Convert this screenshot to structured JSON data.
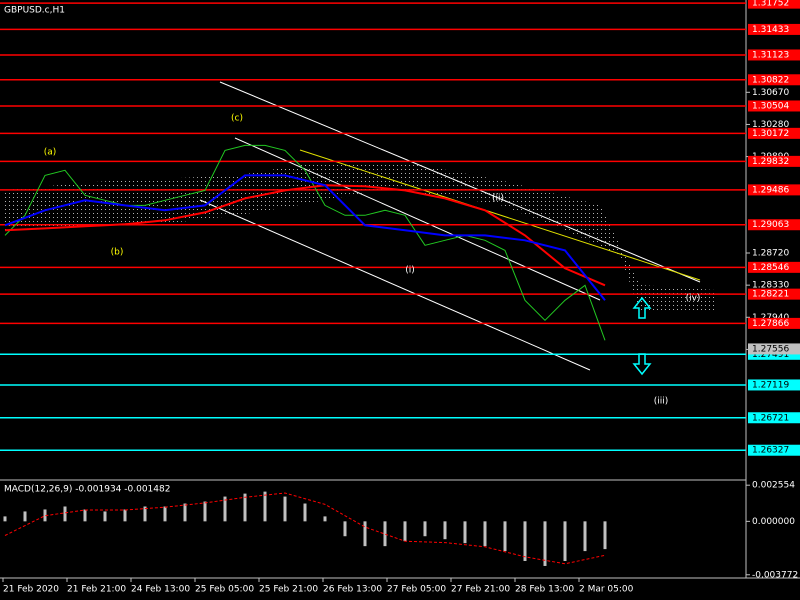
{
  "chart_data": [
    {
      "type": "line",
      "title": "GBPUSD.c,H1",
      "x_labels": [
        "21 Feb 2020",
        "21 Feb 21:00",
        "24 Feb 13:00",
        "25 Feb 05:00",
        "25 Feb 21:00",
        "26 Feb 13:00",
        "27 Feb 05:00",
        "27 Feb 21:00",
        "28 Feb 13:00",
        "2 Mar 05:00"
      ],
      "ylim": [
        1.2599,
        1.3179
      ],
      "yticks": [
        {
          "value": 1.3067,
          "label": "1.30670"
        },
        {
          "value": 1.3028,
          "label": "1.30280"
        },
        {
          "value": 1.2989,
          "label": "1.29890"
        },
        {
          "value": 1.2872,
          "label": "1.28720"
        },
        {
          "value": 1.2833,
          "label": "1.28330"
        },
        {
          "value": 1.2794,
          "label": "1.27940"
        },
        {
          "value": 1.2755,
          "label": "1.27550"
        }
      ],
      "series": [
        {
          "color": "#22c822",
          "values": [
            1.28934,
            1.29177,
            1.29662,
            1.29723,
            1.2942,
            1.29359,
            1.29298,
            1.29298,
            1.29359,
            1.2942,
            1.2948,
            1.29965,
            1.30026,
            1.30026,
            1.29965,
            1.29723,
            1.29298,
            1.29177,
            1.29177,
            1.29238,
            1.29177,
            1.28813,
            1.28874,
            1.28934,
            1.28874,
            1.28752,
            1.28146,
            1.27904,
            1.28146,
            1.28328,
            1.27661
          ]
        },
        {
          "color": "#ff0000",
          "values": [
            1.28995,
            1.29019,
            1.29044,
            1.29068,
            1.29117,
            1.29213,
            1.29383,
            1.2948,
            1.29541,
            1.29529,
            1.2948,
            1.29383,
            1.29238,
            1.28934,
            1.28534,
            1.28328
          ]
        },
        {
          "color": "#0000ff",
          "values": [
            1.29056,
            1.29238,
            1.29359,
            1.29298,
            1.29238,
            1.29298,
            1.29662,
            1.29662,
            1.29541,
            1.29056,
            1.28995,
            1.28934,
            1.28934,
            1.28874,
            1.28752,
            1.28146
          ]
        }
      ],
      "levels": [
        {
          "value": 1.31752,
          "color": "#ff0000"
        },
        {
          "value": 1.31433,
          "color": "#ff0000"
        },
        {
          "value": 1.31123,
          "color": "#ff0000"
        },
        {
          "value": 1.30822,
          "color": "#ff0000"
        },
        {
          "value": 1.30504,
          "color": "#ff0000"
        },
        {
          "value": 1.30172,
          "color": "#ff0000"
        },
        {
          "value": 1.29832,
          "color": "#ff0000"
        },
        {
          "value": 1.29486,
          "color": "#ff0000"
        },
        {
          "value": 1.29063,
          "color": "#ff0000"
        },
        {
          "value": 1.28546,
          "color": "#ff0000"
        },
        {
          "value": 1.28221,
          "color": "#ff0000"
        },
        {
          "value": 1.27866,
          "color": "#ff0000"
        },
        {
          "value": 1.27491,
          "color": "#00ffff"
        },
        {
          "value": 1.27119,
          "color": "#00ffff"
        },
        {
          "value": 1.26721,
          "color": "#00ffff"
        },
        {
          "value": 1.26327,
          "color": "#00ffff"
        }
      ],
      "price": 1.27556,
      "annotations": [
        {
          "text": "(a)",
          "color": "#ffff00"
        },
        {
          "text": "(b)",
          "color": "#ffff00"
        },
        {
          "text": "(c)",
          "color": "#ffff00"
        },
        {
          "text": "(i)",
          "color": "#ffffff"
        },
        {
          "text": "(ii)",
          "color": "#ffffff"
        },
        {
          "text": "(iii)",
          "color": "#ffffff"
        },
        {
          "text": "(iv)",
          "color": "#ffffff"
        }
      ]
    },
    {
      "type": "macd",
      "title": "MACD(12,26,9) -0.001934 -0.001482",
      "ylim": [
        -0.004,
        0.00285
      ],
      "yticks": [
        0.002554,
        {
          "value": 0,
          "label": "0.000000"
        },
        -0.003772
      ],
      "series": [
        {
          "color": "#c0c0c0",
          "values": [
            0.00035,
            0.0007,
            0.00084,
            0.00105,
            0.00084,
            0.0007,
            0.00084,
            0.00105,
            0.00105,
            0.00126,
            0.0014,
            0.00175,
            0.00196,
            0.0021,
            0.00175,
            0.00126,
            0.00035,
            -0.00105,
            -0.00175,
            -0.00175,
            -0.0014,
            -0.00105,
            -0.00126,
            -0.00154,
            -0.00175,
            -0.0021,
            -0.0028,
            -0.00315,
            -0.0028,
            -0.0021,
            -0.00196
          ]
        },
        {
          "color": "#ff0000",
          "values": [
            -0.001,
            0.0004,
            0.0008,
            0.0008,
            0.001,
            0.0013,
            0.0017,
            0.002,
            0.0012,
            -0.0004,
            -0.0014,
            -0.0015,
            -0.0018,
            -0.0025,
            -0.003,
            -0.0024
          ]
        }
      ]
    }
  ]
}
